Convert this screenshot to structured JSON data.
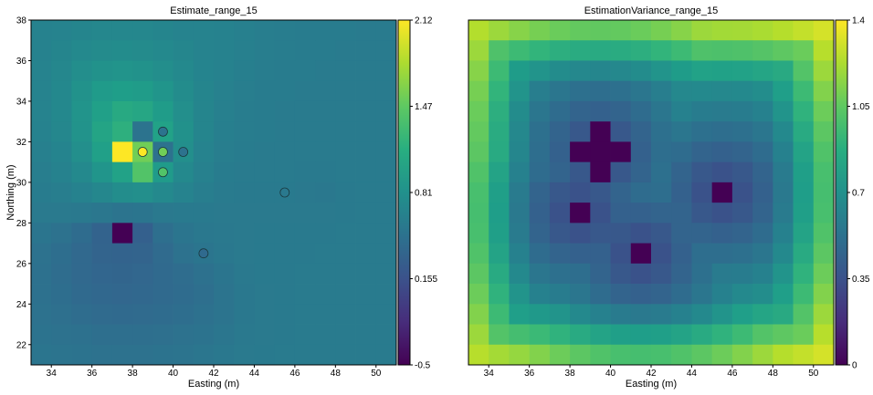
{
  "chart_data": [
    {
      "type": "heatmap",
      "title": "Estimate_range_15",
      "xlabel": "Easting (m)",
      "ylabel": "Northing (m)",
      "xlim": [
        33,
        51
      ],
      "ylim": [
        21,
        38
      ],
      "x_ticks": [
        34,
        36,
        38,
        40,
        42,
        44,
        46,
        48,
        50
      ],
      "y_ticks": [
        22,
        24,
        26,
        28,
        30,
        32,
        34,
        36,
        38
      ],
      "cell_size": 1,
      "colormap": "viridis",
      "colorbar": {
        "min": -0.5,
        "max": 2.12,
        "ticks": [
          "2.12",
          "1.47",
          "0.81",
          "0.155",
          "-0.5"
        ]
      },
      "grid_x0": 33,
      "grid_y0": 21,
      "rows_top_to_bottom": [
        [
          0.66,
          0.68,
          0.7,
          0.72,
          0.72,
          0.72,
          0.7,
          0.68,
          0.67,
          0.66,
          0.64,
          0.62,
          0.61,
          0.6,
          0.6,
          0.6,
          0.59,
          0.59
        ],
        [
          0.66,
          0.7,
          0.74,
          0.76,
          0.77,
          0.76,
          0.74,
          0.71,
          0.68,
          0.66,
          0.64,
          0.62,
          0.61,
          0.6,
          0.6,
          0.59,
          0.59,
          0.59
        ],
        [
          0.67,
          0.72,
          0.79,
          0.83,
          0.85,
          0.83,
          0.79,
          0.74,
          0.69,
          0.66,
          0.63,
          0.61,
          0.6,
          0.6,
          0.59,
          0.59,
          0.59,
          0.59
        ],
        [
          0.67,
          0.73,
          0.83,
          0.92,
          0.96,
          0.93,
          0.86,
          0.77,
          0.7,
          0.65,
          0.62,
          0.6,
          0.6,
          0.59,
          0.59,
          0.59,
          0.59,
          0.59
        ],
        [
          0.67,
          0.73,
          0.85,
          0.98,
          1.08,
          1.05,
          0.93,
          0.8,
          0.7,
          0.64,
          0.61,
          0.6,
          0.59,
          0.59,
          0.59,
          0.59,
          0.59,
          0.59
        ],
        [
          0.66,
          0.72,
          0.84,
          1.02,
          1.15,
          0.5,
          1.0,
          0.82,
          0.7,
          0.63,
          0.61,
          0.6,
          0.59,
          0.59,
          0.59,
          0.59,
          0.59,
          0.59
        ],
        [
          0.64,
          0.69,
          0.8,
          0.98,
          2.12,
          1.55,
          0.48,
          0.8,
          0.68,
          0.62,
          0.6,
          0.59,
          0.59,
          0.59,
          0.59,
          0.59,
          0.59,
          0.59
        ],
        [
          0.62,
          0.66,
          0.74,
          0.86,
          1.0,
          1.4,
          0.92,
          0.74,
          0.65,
          0.6,
          0.59,
          0.59,
          0.59,
          0.58,
          0.58,
          0.59,
          0.59,
          0.59
        ],
        [
          0.6,
          0.62,
          0.66,
          0.72,
          0.78,
          0.8,
          0.74,
          0.67,
          0.62,
          0.59,
          0.58,
          0.58,
          0.58,
          0.56,
          0.55,
          0.58,
          0.59,
          0.59
        ],
        [
          0.57,
          0.57,
          0.56,
          0.54,
          0.51,
          0.52,
          0.56,
          0.58,
          0.58,
          0.57,
          0.57,
          0.57,
          0.57,
          0.57,
          0.57,
          0.58,
          0.59,
          0.59
        ],
        [
          0.52,
          0.49,
          0.42,
          0.32,
          -0.5,
          0.3,
          0.45,
          0.52,
          0.55,
          0.56,
          0.57,
          0.58,
          0.58,
          0.58,
          0.58,
          0.59,
          0.59,
          0.59
        ],
        [
          0.48,
          0.44,
          0.38,
          0.33,
          0.32,
          0.33,
          0.41,
          0.48,
          0.52,
          0.55,
          0.57,
          0.58,
          0.58,
          0.58,
          0.59,
          0.59,
          0.59,
          0.59
        ],
        [
          0.47,
          0.43,
          0.38,
          0.35,
          0.34,
          0.36,
          0.4,
          0.43,
          0.47,
          0.52,
          0.56,
          0.58,
          0.58,
          0.59,
          0.59,
          0.59,
          0.59,
          0.59
        ],
        [
          0.47,
          0.44,
          0.4,
          0.37,
          0.36,
          0.37,
          0.4,
          0.42,
          0.45,
          0.51,
          0.55,
          0.57,
          0.58,
          0.59,
          0.59,
          0.59,
          0.59,
          0.59
        ],
        [
          0.48,
          0.46,
          0.43,
          0.41,
          0.4,
          0.41,
          0.42,
          0.44,
          0.47,
          0.51,
          0.55,
          0.57,
          0.58,
          0.59,
          0.59,
          0.59,
          0.59,
          0.59
        ],
        [
          0.5,
          0.49,
          0.47,
          0.45,
          0.45,
          0.45,
          0.46,
          0.48,
          0.5,
          0.53,
          0.56,
          0.57,
          0.58,
          0.59,
          0.59,
          0.59,
          0.59,
          0.59
        ],
        [
          0.52,
          0.51,
          0.5,
          0.49,
          0.49,
          0.49,
          0.5,
          0.51,
          0.53,
          0.55,
          0.57,
          0.58,
          0.59,
          0.59,
          0.59,
          0.59,
          0.59,
          0.59
        ]
      ],
      "samples": [
        {
          "x": 38.5,
          "y": 31.5,
          "value": 2.12
        },
        {
          "x": 39.5,
          "y": 32.5,
          "value": 0.5
        },
        {
          "x": 39.5,
          "y": 31.5,
          "value": 1.55
        },
        {
          "x": 39.5,
          "y": 30.5,
          "value": 1.4
        },
        {
          "x": 40.5,
          "y": 31.5,
          "value": 0.48
        },
        {
          "x": 45.5,
          "y": 29.5,
          "value": 0.56
        },
        {
          "x": 41.5,
          "y": 26.5,
          "value": 0.4
        }
      ]
    },
    {
      "type": "heatmap",
      "title": "EstimationVariance_range_15",
      "xlabel": "Easting (m)",
      "ylabel": "",
      "xlim": [
        33,
        51
      ],
      "ylim": [
        21,
        38
      ],
      "x_ticks": [
        34,
        36,
        38,
        40,
        42,
        44,
        46,
        48,
        50
      ],
      "colormap": "viridis",
      "colorbar": {
        "min": 0,
        "max": 1.4,
        "ticks": [
          "1.4",
          "1.05",
          "0.7",
          "0.35",
          "0"
        ]
      },
      "description_of_field": "variance rises toward the domain edges and is zero at sample locations",
      "zero_cells": [
        {
          "x": 39.5,
          "y": 32.5
        },
        {
          "x": 38.5,
          "y": 31.5
        },
        {
          "x": 39.5,
          "y": 31.5
        },
        {
          "x": 40.5,
          "y": 31.5
        },
        {
          "x": 39.5,
          "y": 30.5
        },
        {
          "x": 45.5,
          "y": 29.5
        },
        {
          "x": 38.5,
          "y": 28.5
        },
        {
          "x": 41.5,
          "y": 26.5
        }
      ]
    }
  ]
}
